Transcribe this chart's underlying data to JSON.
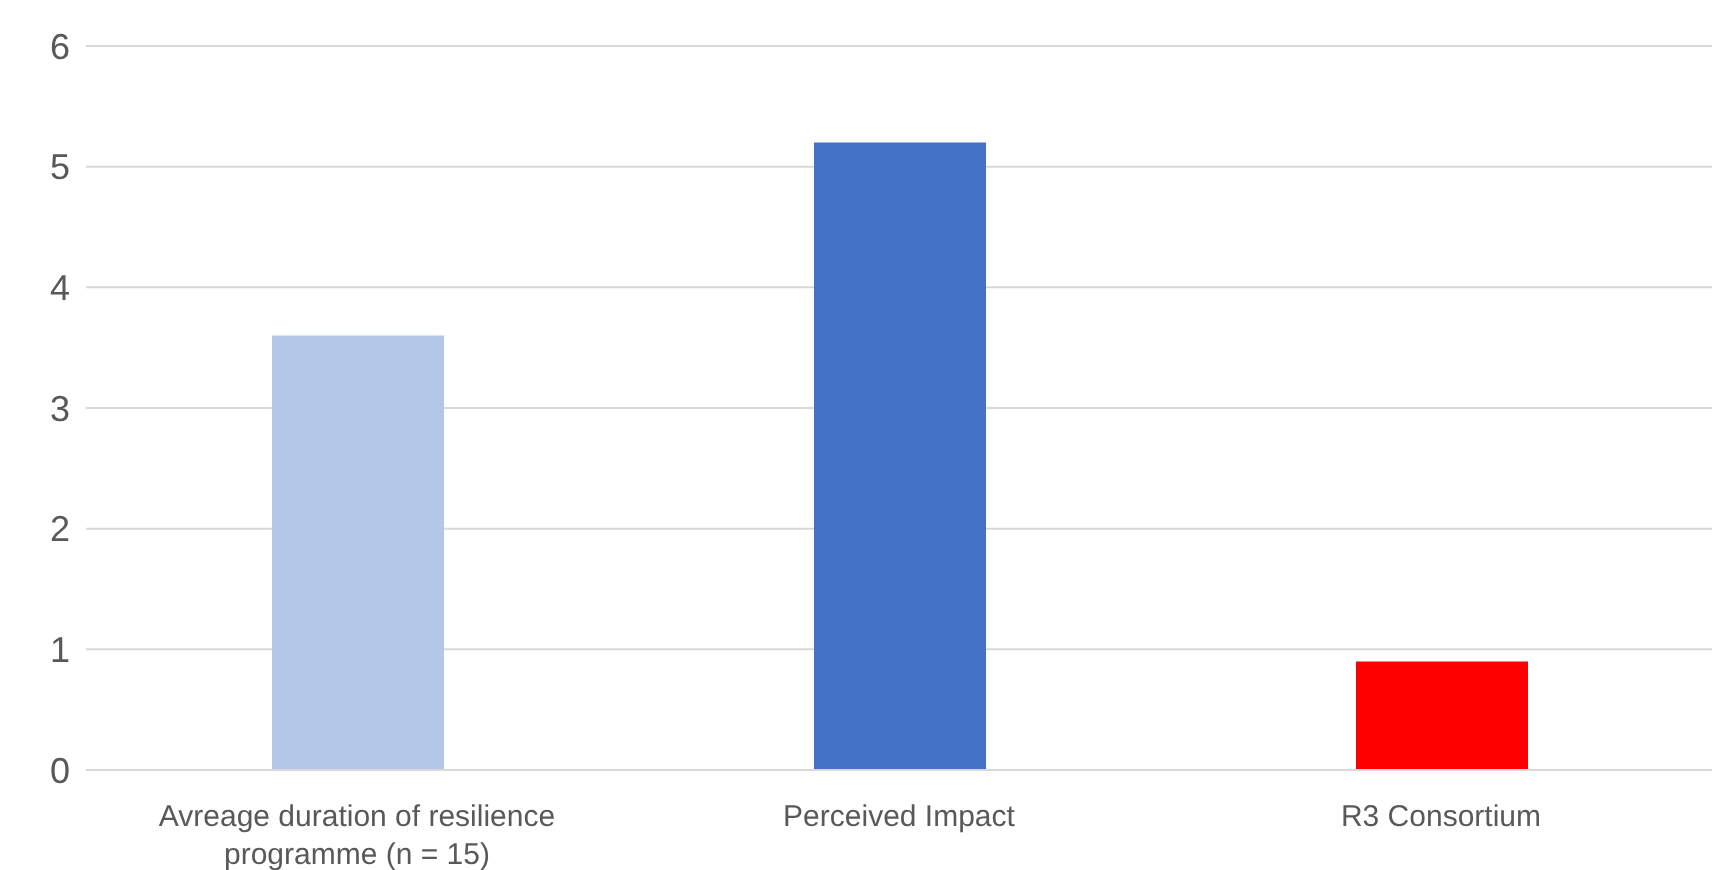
{
  "chart_data": {
    "type": "bar",
    "categories": [
      "Avreage duration of resilience programme (n = 15)",
      "Perceived Impact",
      "R3 Consortium"
    ],
    "values": [
      3.6,
      5.2,
      0.9
    ],
    "colors": [
      "#b4c7e7",
      "#4472c4",
      "#ff0000"
    ],
    "ylim": [
      0,
      6
    ],
    "yticks": [
      0,
      1,
      2,
      3,
      4,
      5,
      6
    ],
    "grid": "y"
  }
}
